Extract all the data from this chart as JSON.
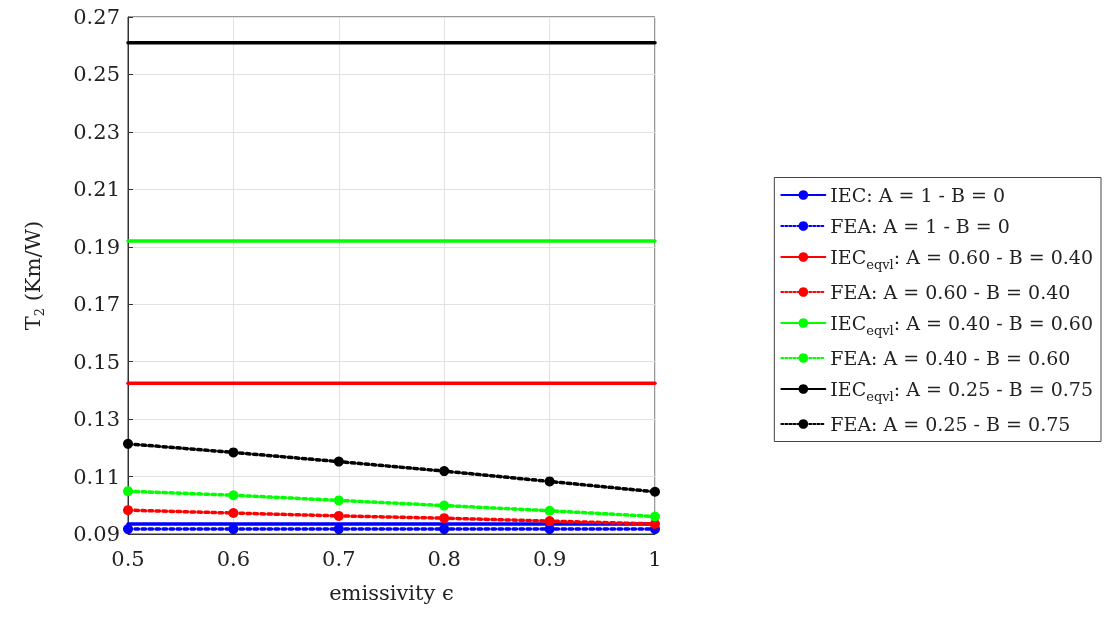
{
  "chart_data": {
    "type": "line",
    "xlabel": "emissivity ϵ",
    "ylabel": "T$_{2}$ (Km/W)",
    "x": [
      0.5,
      0.6,
      0.7,
      0.8,
      0.9,
      1
    ],
    "xlim": [
      0.5,
      1
    ],
    "xticks": [
      0.5,
      0.6,
      0.7,
      0.8,
      0.9,
      1
    ],
    "ylim": [
      0.09,
      0.27
    ],
    "yticks": [
      0.09,
      0.11,
      0.13,
      0.15,
      0.17,
      0.19,
      0.21,
      0.23,
      0.25,
      0.27
    ],
    "grid": true,
    "legend": "right",
    "series": [
      {
        "name": "IEC: A = 1 - B = 0",
        "color": "#0000ff",
        "marker": "none",
        "line_style": "solid",
        "values": [
          0.0935,
          0.0935,
          0.0935,
          0.0935,
          0.0935,
          0.0935
        ]
      },
      {
        "name": "FEA: A = 1 - B = 0",
        "color": "#0000ff",
        "marker": "circle",
        "line_style": "dotted",
        "values": [
          0.0917,
          0.0917,
          0.0917,
          0.0917,
          0.0917,
          0.0917
        ]
      },
      {
        "name": "IEC$_{eqvl}$: A = 0.60 - B = 0.40",
        "color": "#ff0000",
        "marker": "none",
        "line_style": "solid",
        "values": [
          0.1425,
          0.1425,
          0.1425,
          0.1425,
          0.1425,
          0.1425
        ]
      },
      {
        "name": "FEA: A = 0.60 - B = 0.40",
        "color": "#ff0000",
        "marker": "circle",
        "line_style": "dotted",
        "values": [
          0.0983,
          0.0973,
          0.0963,
          0.0955,
          0.0945,
          0.0935
        ]
      },
      {
        "name": "IEC$_{eqvl}$: A = 0.40 - B = 0.60",
        "color": "#00ff00",
        "marker": "none",
        "line_style": "solid",
        "values": [
          0.192,
          0.192,
          0.192,
          0.192,
          0.192,
          0.192
        ]
      },
      {
        "name": "FEA: A = 0.40 - B = 0.60",
        "color": "#00ff00",
        "marker": "circle",
        "line_style": "dotted",
        "values": [
          0.1049,
          0.1035,
          0.1017,
          0.0999,
          0.0981,
          0.0961
        ]
      },
      {
        "name": "IEC$_{eqvl}$: A = 0.25 - B = 0.75",
        "color": "#000000",
        "marker": "none",
        "line_style": "solid",
        "values": [
          0.261,
          0.261,
          0.261,
          0.261,
          0.261,
          0.261
        ]
      },
      {
        "name": "FEA: A = 0.25 - B = 0.75",
        "color": "#000000",
        "marker": "circle",
        "line_style": "dotted",
        "values": [
          0.1214,
          0.1184,
          0.1152,
          0.1119,
          0.1083,
          0.1047
        ]
      }
    ]
  }
}
